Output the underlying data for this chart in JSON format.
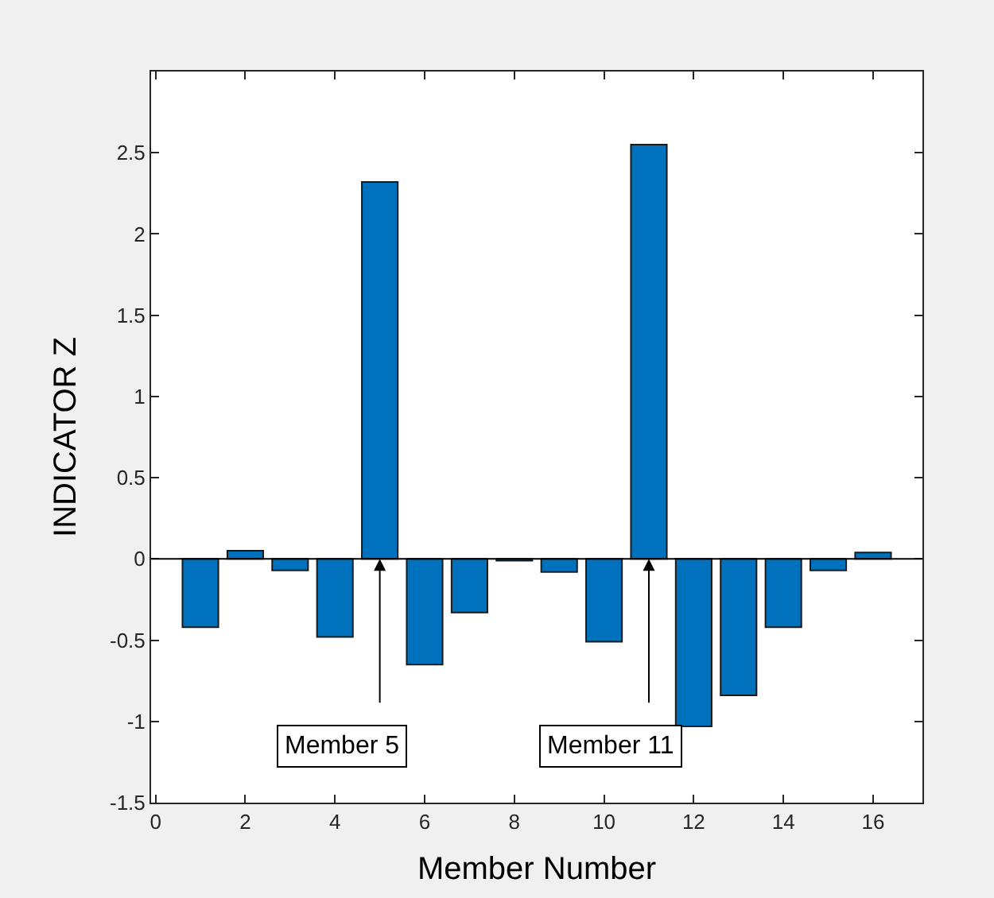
{
  "chart_data": {
    "type": "bar",
    "xlabel": "Member Number",
    "ylabel": "INDICATOR Z",
    "x": [
      1,
      2,
      3,
      4,
      5,
      6,
      7,
      8,
      9,
      10,
      11,
      12,
      13,
      14,
      15,
      16
    ],
    "values": [
      -0.42,
      0.05,
      -0.07,
      -0.48,
      2.32,
      -0.65,
      -0.33,
      -0.01,
      -0.08,
      -0.51,
      2.55,
      -1.03,
      -0.84,
      -0.42,
      -0.07,
      0.04
    ],
    "color": "#0072bd",
    "xlim": [
      -0.1,
      17.1
    ],
    "xticks": [
      0,
      2,
      4,
      6,
      8,
      10,
      12,
      14,
      16
    ],
    "ylim": [
      -1.5,
      3
    ],
    "yticks": [
      -1.5,
      -1,
      -0.5,
      0,
      0.5,
      1,
      1.5,
      2,
      2.5
    ],
    "legend": false,
    "ref_lines": [
      {
        "axis": "y",
        "value": 0,
        "color": "#000000"
      }
    ],
    "annotations": [
      {
        "text": "Member 5",
        "x": 5,
        "y": 0
      },
      {
        "text": "Member 11",
        "x": 11,
        "y": 0
      }
    ]
  }
}
